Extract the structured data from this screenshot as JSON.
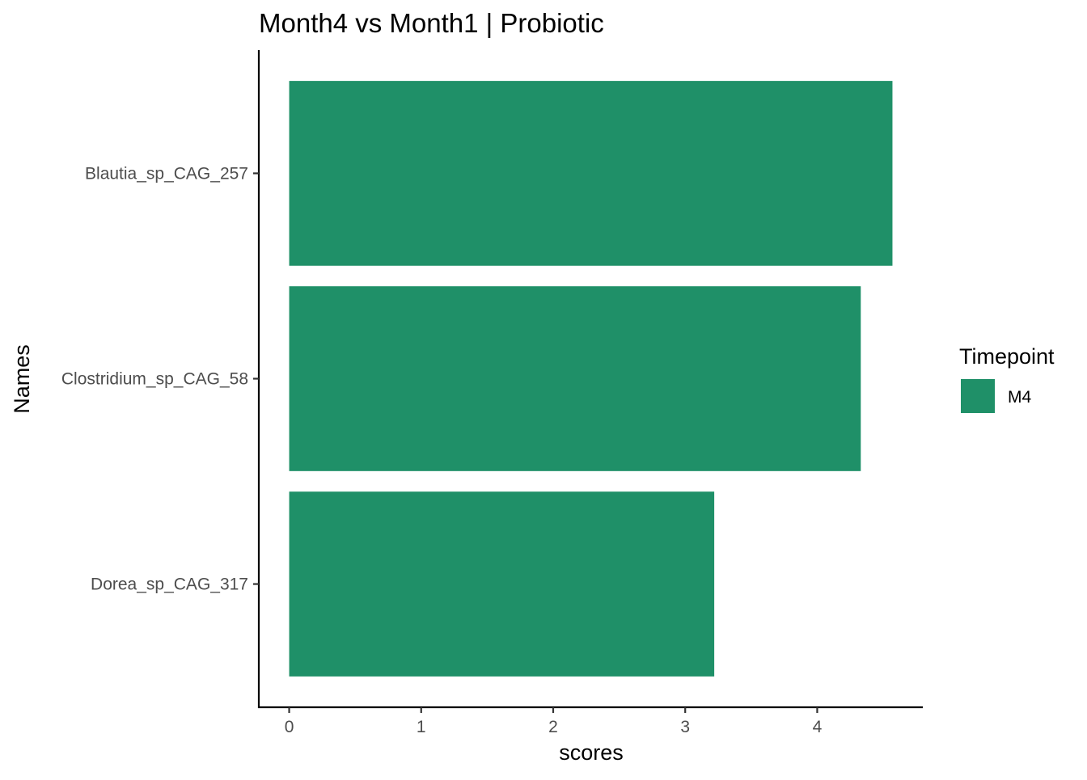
{
  "chart_data": {
    "type": "bar",
    "orientation": "horizontal",
    "title": "Month4 vs Month1 | Probiotic",
    "xlabel": "scores",
    "ylabel": "Names",
    "categories": [
      "Blautia_sp_CAG_257",
      "Clostridium_sp_CAG_58",
      "Dorea_sp_CAG_317"
    ],
    "series": [
      {
        "name": "M4",
        "values": [
          4.57,
          4.33,
          3.22
        ],
        "color": "#1f9068"
      }
    ],
    "xlim": [
      -0.23,
      4.8
    ],
    "xticks": [
      0,
      1,
      2,
      3,
      4
    ],
    "grid": false,
    "legend": {
      "title": "Timepoint",
      "position": "right"
    }
  }
}
